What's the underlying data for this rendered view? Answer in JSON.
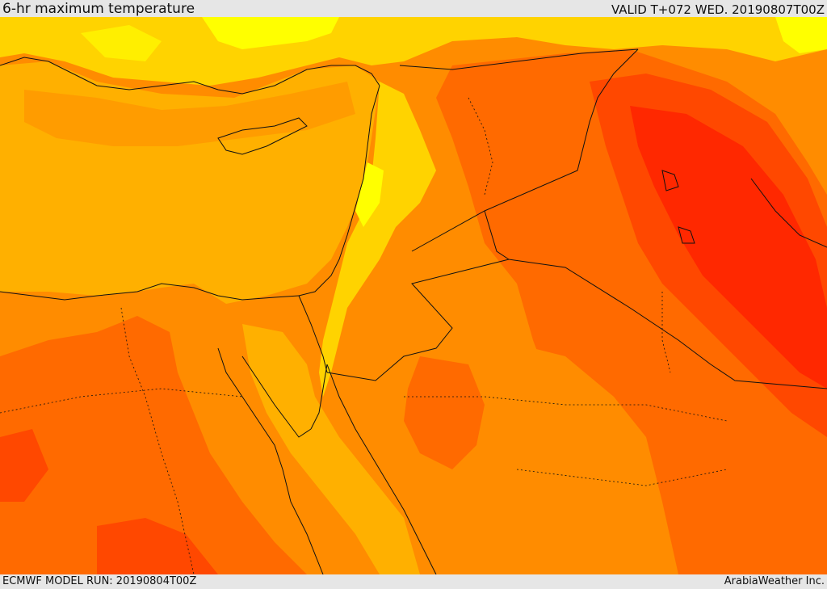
{
  "header": {
    "title": "6-hr maximum temperature",
    "valid": "VALID T+072 WED. 20190807T00Z"
  },
  "footer": {
    "model_run": "ECMWF MODEL RUN: 20190804T00Z",
    "credit": "ArabiaWeather Inc."
  },
  "palette": {
    "yellow": "#ffff00",
    "light_yellow": "#ffef00",
    "gold": "#ffd300",
    "orange_yellow": "#ffb000",
    "orange": "#ff8c00",
    "dark_orange": "#ff6a00",
    "red_orange": "#ff4800",
    "red": "#ff2800"
  }
}
